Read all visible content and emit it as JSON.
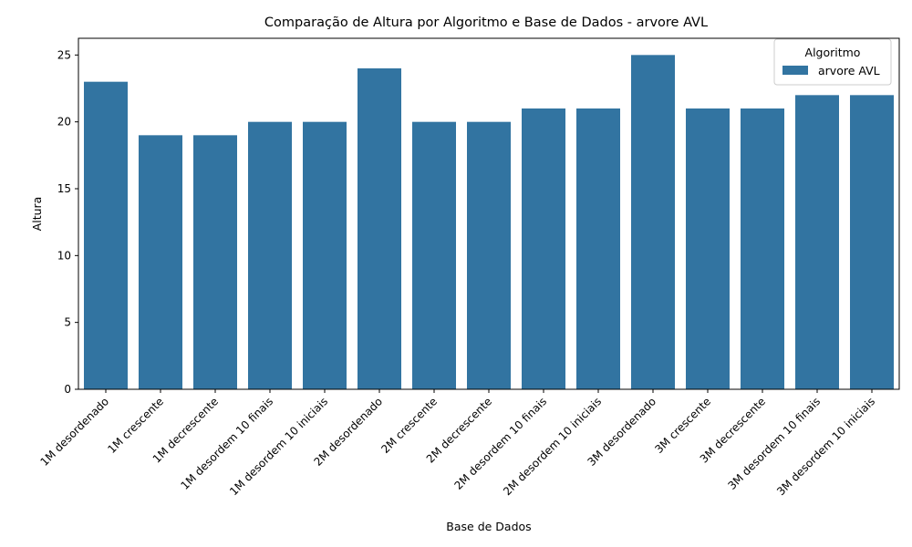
{
  "chart_data": {
    "type": "bar",
    "title": "Comparação de Altura por Algoritmo e Base de Dados - arvore AVL",
    "xlabel": "Base de Dados",
    "ylabel": "Altura",
    "ylim": [
      0,
      26.25
    ],
    "yticks": [
      0,
      5,
      10,
      15,
      20,
      25
    ],
    "grid": false,
    "legend": {
      "title": "Algoritmo",
      "placement": "top-right"
    },
    "categories": [
      "1M desordenado",
      "1M crescente",
      "1M decrescente",
      "1M desordem 10 finais",
      "1M desordem 10 iniciais",
      "2M desordenado",
      "2M crescente",
      "2M decrescente",
      "2M desordem 10 finais",
      "2M desordem 10 iniciais",
      "3M desordenado",
      "3M crescente",
      "3M decrescente",
      "3M desordem 10 finais",
      "3M desordem 10 iniciais"
    ],
    "series": [
      {
        "name": "arvore AVL",
        "color": "#3274a1",
        "values": [
          23,
          19,
          19,
          20,
          20,
          24,
          20,
          20,
          21,
          21,
          25,
          21,
          21,
          22,
          22
        ]
      }
    ]
  }
}
